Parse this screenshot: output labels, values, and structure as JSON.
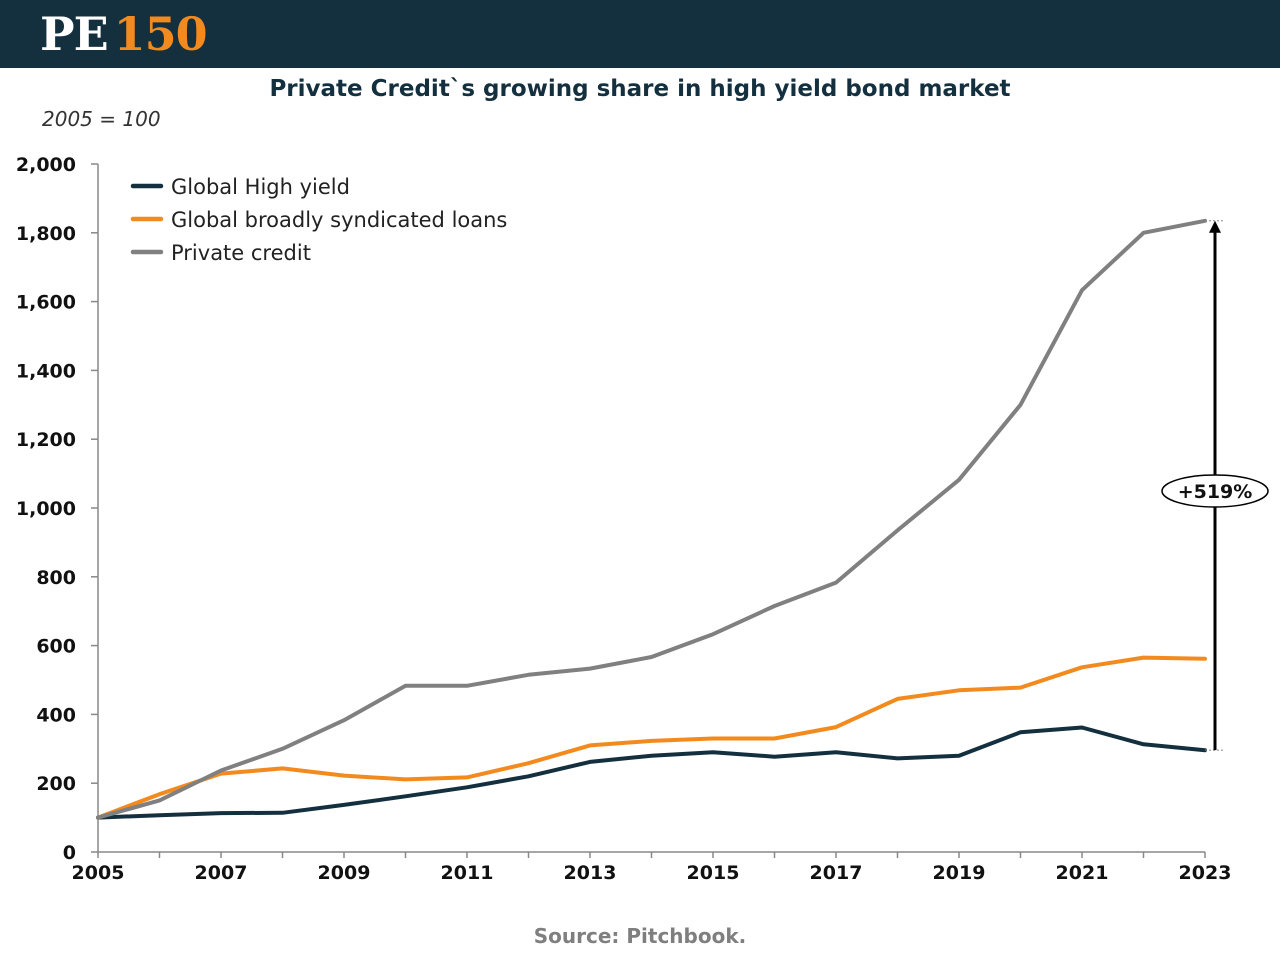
{
  "header": {
    "logo_pe": "PE",
    "logo_num": "150"
  },
  "chart_data": {
    "type": "line",
    "title": "Private Credit`s growing share in high yield bond market",
    "subtitle": "2005 = 100",
    "x": [
      2005,
      2006,
      2007,
      2008,
      2009,
      2010,
      2011,
      2012,
      2013,
      2014,
      2015,
      2016,
      2017,
      2018,
      2019,
      2020,
      2021,
      2022,
      2023
    ],
    "x_tick_labels": [
      "2005",
      "2007",
      "2009",
      "2011",
      "2013",
      "2015",
      "2017",
      "2019",
      "2021",
      "2023"
    ],
    "x_ticks": [
      2005,
      2007,
      2009,
      2011,
      2013,
      2015,
      2017,
      2019,
      2021,
      2023
    ],
    "y_tick_labels": [
      "0",
      "200",
      "400",
      "600",
      "800",
      "1,000",
      "1,200",
      "1,400",
      "1,600",
      "1,800",
      "2,000"
    ],
    "y_ticks": [
      0,
      200,
      400,
      600,
      800,
      1000,
      1200,
      1400,
      1600,
      1800,
      2000
    ],
    "xlim": [
      2005,
      2023
    ],
    "ylim": [
      0,
      2000
    ],
    "grid": false,
    "legend_position": "top-left",
    "series": [
      {
        "name": "Global High yield",
        "color": "#14303f",
        "values": [
          100,
          107,
          113,
          114,
          137,
          162,
          188,
          220,
          262,
          280,
          290,
          277,
          290,
          272,
          280,
          348,
          362,
          313,
          296
        ]
      },
      {
        "name": "Global broadly syndicated loans",
        "color": "#f28a1e",
        "values": [
          100,
          168,
          228,
          243,
          222,
          211,
          217,
          258,
          310,
          323,
          330,
          330,
          363,
          445,
          470,
          478,
          537,
          565,
          562
        ]
      },
      {
        "name": "Private credit",
        "color": "#808080",
        "values": [
          100,
          150,
          237,
          300,
          383,
          483,
          483,
          515,
          533,
          567,
          633,
          715,
          783,
          935,
          1082,
          1300,
          1633,
          1800,
          1835
        ]
      }
    ],
    "annotation": {
      "label": "+519%",
      "x": 2023,
      "from_value": 296,
      "to_value": 1835
    }
  },
  "source": "Source: Pitchbook."
}
